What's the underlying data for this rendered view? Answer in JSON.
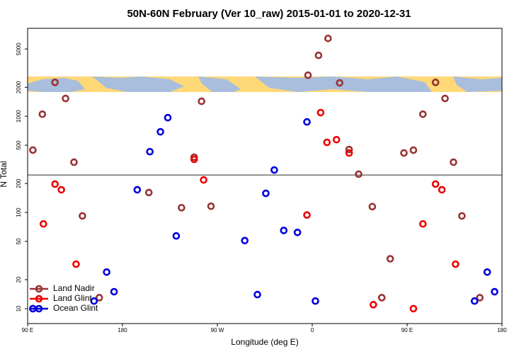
{
  "chart_data": {
    "type": "scatter",
    "title": "50N-60N February (Ver 10_raw)   2015-01-01 to 2020-12-31",
    "x_label": "Longitude (deg E)",
    "y_label": "N Total",
    "log_y": true,
    "xlim": [
      90,
      540
    ],
    "xticks": [
      {
        "value": 90,
        "label": "90 E"
      },
      180,
      {
        "value": 270,
        "label": "90 W"
      },
      {
        "value": 360,
        "label": "0"
      },
      {
        "value": 450,
        "label": "90 E"
      },
      {
        "value": 540,
        "label": "180"
      }
    ],
    "ylim": [
      7,
      8200
    ],
    "yticks": [
      10,
      20,
      50,
      100,
      200,
      500,
      1000,
      2000,
      5000
    ],
    "hline": 245,
    "legend_position": "lower left",
    "series": [
      {
        "name": "Land Nadir",
        "color": "#993333",
        "x": [
          95,
          104,
          116,
          126,
          134,
          142,
          158,
          205,
          236,
          248,
          255,
          264,
          356,
          366,
          375,
          386,
          395,
          404,
          417,
          426,
          434,
          447,
          456,
          465,
          477,
          486,
          494,
          502,
          519
        ],
        "values": [
          445,
          1050,
          2250,
          1530,
          333,
          92,
          13,
          161,
          112,
          375,
          1430,
          116,
          2670,
          4290,
          6440,
          2220,
          451,
          250,
          115,
          13,
          33,
          415,
          444,
          1050,
          2250,
          1530,
          333,
          92,
          13
        ]
      },
      {
        "name": "Land Glint",
        "color": "#ee0000",
        "x": [
          95,
          105,
          116,
          122,
          136,
          248,
          257,
          355,
          368,
          374,
          383,
          395,
          418,
          456,
          465,
          477,
          483,
          496
        ],
        "values": [
          10,
          76,
          197,
          172,
          29,
          356,
          218,
          94,
          1090,
          535,
          571,
          415,
          11,
          10,
          76,
          197,
          172,
          29
        ]
      },
      {
        "name": "Ocean Glint",
        "color": "#0000dd",
        "x": [
          95,
          153,
          165,
          172,
          194,
          206,
          216,
          223,
          231,
          296,
          308,
          316,
          324,
          333,
          346,
          355,
          363,
          514,
          526,
          533
        ],
        "values": [
          10,
          12,
          24,
          15,
          172,
          428,
          689,
          966,
          57,
          51,
          14,
          158,
          276,
          65,
          62,
          873,
          12,
          12,
          24,
          15
        ]
      }
    ]
  }
}
